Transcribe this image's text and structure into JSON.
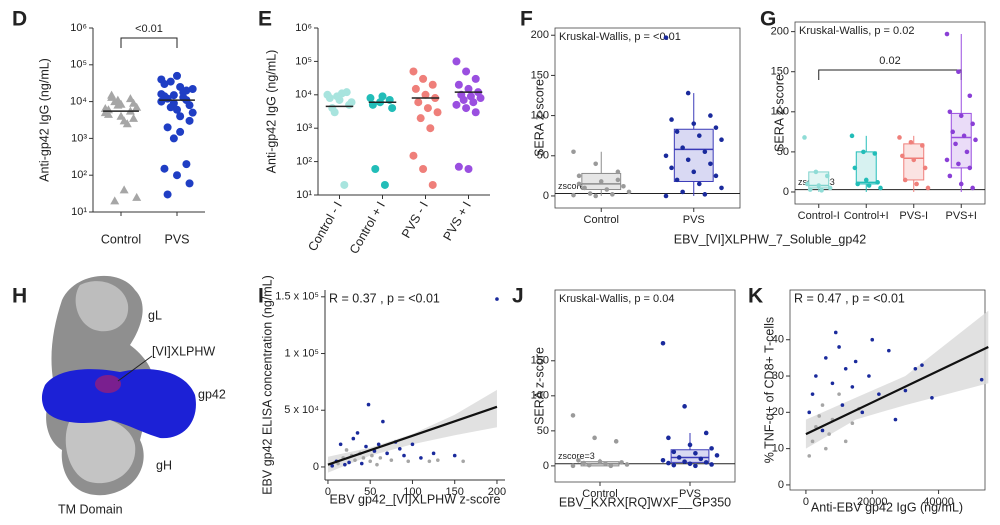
{
  "chart_data": [
    {
      "type": "strip",
      "panel": "D",
      "ylabel": "Anti-gp42 IgG (ng/mL)",
      "categories": [
        "Control",
        "PVS"
      ],
      "ylog": true,
      "ylim": [
        10,
        1000000
      ],
      "yticks": [
        {
          "value": 10,
          "label": "10¹"
        },
        {
          "value": 100,
          "label": "10²"
        },
        {
          "value": 1000,
          "label": "10³"
        },
        {
          "value": 10000,
          "label": "10⁴"
        },
        {
          "value": 100000,
          "label": "10⁵"
        },
        {
          "value": 1000000,
          "label": "10⁶"
        }
      ],
      "colors": [
        "#a6a6a6",
        "#1f3ec4"
      ],
      "markers": [
        "triangle",
        "circle"
      ],
      "values": [
        [
          5000,
          8000,
          12000,
          6000,
          4000,
          9000,
          15000,
          3000,
          7000,
          10000,
          2500,
          6500,
          11000,
          5500,
          4500,
          8500,
          3500,
          13000,
          40,
          25,
          20
        ],
        [
          10000,
          15000,
          20000,
          30000,
          50000,
          8000,
          12000,
          25000,
          5000,
          7000,
          18000,
          40000,
          9000,
          11000,
          14000,
          6000,
          3000,
          2000,
          1500,
          22000,
          35000,
          13000,
          16000,
          1000,
          200,
          150,
          100,
          60,
          30,
          4000
        ]
      ],
      "medians": [
        5500,
        11000
      ],
      "bracket_label": "<0.01"
    },
    {
      "type": "strip",
      "panel": "E",
      "ylabel": "Anti-gp42 IgG (ng/mL)",
      "categories": [
        "Control - I",
        "Control + I",
        "PVS - I",
        "PVS + I"
      ],
      "ylog": true,
      "ylim": [
        10,
        1000000
      ],
      "yticks": [
        {
          "value": 10,
          "label": "10¹"
        },
        {
          "value": 100,
          "label": "10²"
        },
        {
          "value": 1000,
          "label": "10³"
        },
        {
          "value": 10000,
          "label": "10⁴"
        },
        {
          "value": 100000,
          "label": "10⁵"
        },
        {
          "value": 1000000,
          "label": "10⁶"
        }
      ],
      "colors": [
        "#a8e4de",
        "#22bdb8",
        "#ef7f7a",
        "#9a4fe0"
      ],
      "markers": [
        "circle",
        "circle",
        "circle",
        "circle"
      ],
      "values": [
        [
          10000,
          9000,
          12000,
          8000,
          7000,
          5000,
          4000,
          11000,
          6000,
          3000,
          20
        ],
        [
          8000,
          6000,
          7000,
          5000,
          9000,
          4000,
          60,
          20
        ],
        [
          50000,
          30000,
          20000,
          15000,
          10000,
          8000,
          6000,
          4000,
          3000,
          2000,
          1000,
          150,
          60,
          20
        ],
        [
          100000,
          50000,
          30000,
          20000,
          15000,
          12000,
          10000,
          9000,
          8000,
          7000,
          6000,
          5000,
          4000,
          3000,
          70,
          60
        ]
      ],
      "medians": [
        4500,
        6000,
        8000,
        12000
      ]
    },
    {
      "type": "box",
      "panel": "F",
      "ylabel": "SERA z-score",
      "xlabel": "EBV_[VI]XLPHW_7_Soluble_gp42",
      "annotation": "Kruskal-Wallis, p = <0.01",
      "categories": [
        "Control",
        "PVS"
      ],
      "ylim": [
        -15,
        209
      ],
      "yticks": [
        0,
        50,
        100,
        150,
        200
      ],
      "threshold": 3,
      "threshold_label": "zscore=3",
      "fills": [
        "#e6e6e6",
        "#d9d9f3"
      ],
      "strokes": [
        "#8c8c8c",
        "#3a3ab8"
      ],
      "point_colors": [
        "#9a9a9a",
        "#1a2a9c"
      ],
      "boxes": [
        {
          "lo": 0,
          "q1": 8,
          "med": 15,
          "q3": 28,
          "hi": 55
        },
        {
          "lo": 0,
          "q1": 18,
          "med": 58,
          "q3": 83,
          "hi": 128
        }
      ],
      "points": [
        [
          55,
          40,
          30,
          25,
          18,
          12,
          10,
          8,
          5,
          3,
          2,
          1,
          0,
          20,
          15
        ],
        [
          197,
          128,
          100,
          95,
          90,
          85,
          80,
          75,
          70,
          60,
          55,
          50,
          45,
          40,
          35,
          30,
          25,
          20,
          15,
          10,
          5,
          2,
          0
        ]
      ]
    },
    {
      "type": "box",
      "panel": "G",
      "ylabel": "SERA z-score",
      "annotation": "Kruskal-Wallis, p = 0.02",
      "bracket_label": "0.02",
      "categories": [
        "Control-I",
        "Control+I",
        "PVS-I",
        "PVS+I"
      ],
      "ylim": [
        -15,
        212
      ],
      "yticks": [
        0,
        50,
        100,
        150,
        200
      ],
      "threshold": 3,
      "threshold_label": "zscore=3",
      "fills": [
        "#e3f6f4",
        "#d7f2f1",
        "#fbe3e2",
        "#eadcf8"
      ],
      "strokes": [
        "#7fd2cc",
        "#22bdb8",
        "#ef7f7a",
        "#9a4fe0"
      ],
      "point_colors": [
        "#8fdcd6",
        "#22bdb8",
        "#ef7f7a",
        "#8a3fd6"
      ],
      "boxes": [
        {
          "lo": 0,
          "q1": 5,
          "med": 8,
          "q3": 25,
          "hi": 25
        },
        {
          "lo": 0,
          "q1": 10,
          "med": 12,
          "q3": 50,
          "hi": 70
        },
        {
          "lo": 0,
          "q1": 15,
          "med": 42,
          "q3": 60,
          "hi": 70
        },
        {
          "lo": 0,
          "q1": 30,
          "med": 68,
          "q3": 98,
          "hi": 197
        }
      ],
      "points": [
        [
          68,
          25,
          20,
          10,
          8,
          5,
          3,
          2
        ],
        [
          70,
          50,
          48,
          30,
          15,
          12,
          10,
          8,
          5
        ],
        [
          68,
          62,
          58,
          45,
          40,
          30,
          15,
          10,
          5
        ],
        [
          197,
          150,
          120,
          100,
          95,
          85,
          75,
          70,
          65,
          60,
          50,
          40,
          35,
          30,
          20,
          10,
          5
        ]
      ]
    },
    {
      "type": "scatter",
      "panel": "I",
      "ylabel": "EBV gp42 ELISA concentration (ng/mL)",
      "xlabel": "EBV gp42_[VI]XLPHW z-score",
      "annotation": "R = 0.37 , p = <0.01",
      "xlim": [
        -3.5,
        209.5
      ],
      "xticks": [
        0,
        50,
        100,
        150,
        200
      ],
      "ylim": [
        -11500,
        156000
      ],
      "yticks": [
        0,
        {
          "value": 50000,
          "label": "5 x 10⁴"
        },
        {
          "value": 100000,
          "label": "1 x 10⁵"
        },
        {
          "value": 150000,
          "label": "1.5 x 10⁵"
        }
      ],
      "series": [
        {
          "color": "#1a2a9c",
          "x": [
            5,
            10,
            15,
            20,
            25,
            30,
            35,
            40,
            45,
            48,
            55,
            60,
            65,
            70,
            80,
            85,
            90,
            100,
            110,
            125,
            150,
            200
          ],
          "y": [
            1000,
            5000,
            20000,
            2000,
            4000,
            25000,
            30000,
            3000,
            18000,
            55000,
            14000,
            20000,
            40000,
            12000,
            22000,
            16000,
            10000,
            20000,
            8000,
            12000,
            10000,
            148000
          ]
        },
        {
          "color": "#a6a6a6",
          "x": [
            12,
            18,
            22,
            28,
            32,
            38,
            42,
            50,
            52,
            58,
            62,
            75,
            95,
            120,
            130,
            160
          ],
          "y": [
            3000,
            8000,
            15000,
            10000,
            6000,
            12000,
            8000,
            5000,
            10000,
            2000,
            8000,
            6000,
            5000,
            5000,
            6000,
            5000
          ]
        }
      ],
      "fit": {
        "x": [
          0,
          200
        ],
        "y": [
          2000,
          53000
        ]
      },
      "ci": {
        "x": [
          0,
          50,
          100,
          150,
          200
        ],
        "lower": [
          -5000,
          10000,
          20000,
          28000,
          35000
        ],
        "upper": [
          9000,
          17000,
          29000,
          46000,
          68000
        ]
      }
    },
    {
      "type": "box",
      "panel": "J",
      "ylabel": "SERA z-score",
      "xlabel": "EBV_KXRX[RQ]WXF__GP350",
      "annotation": "Kruskal-Wallis, p = 0.04",
      "categories": [
        "Control",
        "PVS"
      ],
      "ylim": [
        -23,
        251
      ],
      "yticks": [
        0,
        50,
        100,
        150
      ],
      "threshold": 3,
      "threshold_label": "zscore=3",
      "fills": [
        "#e6e6e6",
        "#d9d9f3"
      ],
      "strokes": [
        "#8c8c8c",
        "#3a3ab8"
      ],
      "point_colors": [
        "#9a9a9a",
        "#1a2a9c"
      ],
      "boxes": [
        {
          "lo": 0,
          "q1": 0,
          "med": 3,
          "q3": 6,
          "hi": 10
        },
        {
          "lo": 0,
          "q1": 5,
          "med": 12,
          "q3": 23,
          "hi": 47
        }
      ],
      "points": [
        [
          72,
          40,
          35,
          8,
          6,
          5,
          4,
          3,
          2,
          1,
          0,
          0
        ],
        [
          175,
          85,
          47,
          40,
          30,
          25,
          20,
          18,
          15,
          12,
          10,
          8,
          6,
          5,
          4,
          3,
          2,
          1,
          0
        ]
      ]
    },
    {
      "type": "scatter",
      "panel": "K",
      "ylabel": "% TNF-α+ of CD8+ T-cells",
      "xlabel": "Anti-EBV gp42 IgG (ng/mL)",
      "annotation": "R = 0.47 , p = <0.01",
      "xlim": [
        -4800,
        54000
      ],
      "xticks": [
        0,
        20000,
        40000
      ],
      "ylim": [
        -1.4,
        53.7
      ],
      "yticks": [
        0,
        10,
        20,
        30,
        40
      ],
      "series": [
        {
          "color": "#1a2a9c",
          "x": [
            1000,
            2000,
            3000,
            5000,
            6000,
            8000,
            9000,
            10000,
            11000,
            12000,
            14000,
            15000,
            17000,
            19000,
            20000,
            22000,
            25000,
            27000,
            30000,
            33000,
            35000,
            38000,
            53000
          ],
          "y": [
            20,
            25,
            30,
            15,
            35,
            28,
            42,
            38,
            22,
            32,
            27,
            34,
            20,
            30,
            40,
            25,
            37,
            18,
            26,
            32,
            33,
            24,
            29
          ]
        },
        {
          "color": "#a6a6a6",
          "x": [
            1000,
            2000,
            3000,
            4000,
            5000,
            6000,
            7000,
            8000,
            10000,
            12000,
            14000,
            16000
          ],
          "y": [
            8,
            12,
            16,
            19,
            22,
            10,
            14,
            18,
            25,
            12,
            17,
            21
          ]
        }
      ],
      "fit": {
        "x": [
          0,
          55000
        ],
        "y": [
          14,
          38
        ]
      },
      "ci": {
        "x": [
          0,
          15000,
          30000,
          55000
        ],
        "lower": [
          10,
          18,
          22,
          28
        ],
        "upper": [
          18,
          24,
          30,
          48
        ]
      }
    }
  ],
  "structure": {
    "panel": "H",
    "labels": [
      "gL",
      "[VI]XLPHW",
      "gp42",
      "gH",
      "TM Domain"
    ]
  }
}
